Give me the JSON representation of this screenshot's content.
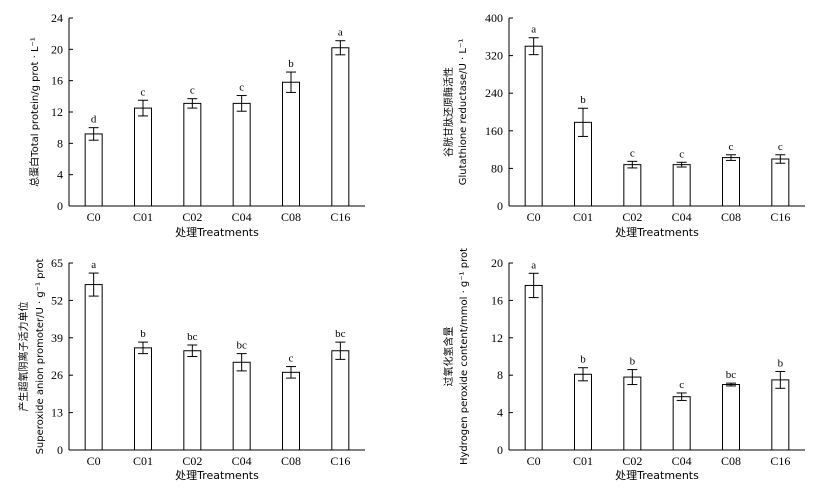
{
  "chart_data": [
    {
      "type": "bar",
      "categories": [
        "C0",
        "C01",
        "C02",
        "C04",
        "C08",
        "C16"
      ],
      "values": [
        9.2,
        12.5,
        13.1,
        13.1,
        15.8,
        20.2
      ],
      "errors": [
        0.8,
        1.0,
        0.6,
        1.0,
        1.3,
        0.9
      ],
      "letters": [
        "d",
        "c",
        "c",
        "c",
        "b",
        "a"
      ],
      "ylim": [
        0,
        24
      ],
      "yticks": [
        0,
        4,
        8,
        12,
        16,
        20,
        24
      ],
      "ylabel": [
        "总蛋白Total protein/g prot · L⁻¹"
      ],
      "xlabel": "处理Treatments"
    },
    {
      "type": "bar",
      "categories": [
        "C0",
        "C01",
        "C02",
        "C04",
        "C08",
        "C16"
      ],
      "values": [
        340,
        178,
        88,
        88,
        103,
        100
      ],
      "errors": [
        18,
        30,
        7,
        5,
        6,
        9
      ],
      "letters": [
        "a",
        "b",
        "c",
        "c",
        "c",
        "c"
      ],
      "ylim": [
        0,
        400
      ],
      "yticks": [
        0,
        80,
        160,
        240,
        320,
        400
      ],
      "ylabel": [
        "谷胱甘肽还原酶活性",
        "Glutathione reductase/U · L⁻¹"
      ],
      "xlabel": "处理Treatments"
    },
    {
      "type": "bar",
      "categories": [
        "C0",
        "C01",
        "C02",
        "C04",
        "C08",
        "C16"
      ],
      "values": [
        57.5,
        35.5,
        34.5,
        30.5,
        27.0,
        34.5
      ],
      "errors": [
        4.0,
        2.0,
        2.0,
        3.0,
        2.0,
        3.0
      ],
      "letters": [
        "a",
        "b",
        "bc",
        "bc",
        "c",
        "bc"
      ],
      "ylim": [
        0,
        65
      ],
      "yticks": [
        0,
        13,
        26,
        39,
        52,
        65
      ],
      "ylabel": [
        "产生超氧阴离子活力单位",
        "Superoxide anion promoter/U · g⁻¹ prot"
      ],
      "xlabel": "处理Treatments"
    },
    {
      "type": "bar",
      "categories": [
        "C0",
        "C01",
        "C02",
        "C04",
        "C08",
        "C16"
      ],
      "values": [
        17.6,
        8.1,
        7.8,
        5.7,
        7.0,
        7.5
      ],
      "errors": [
        1.3,
        0.7,
        0.8,
        0.4,
        0.15,
        0.9
      ],
      "letters": [
        "a",
        "b",
        "b",
        "c",
        "bc",
        "b"
      ],
      "ylim": [
        0,
        20
      ],
      "yticks": [
        0,
        4,
        8,
        12,
        16,
        20
      ],
      "ylabel": [
        "过氧化氢含量",
        "Hydrogen peroxide content/mmol · g⁻¹ prot"
      ],
      "xlabel": "处理Treatments"
    }
  ]
}
